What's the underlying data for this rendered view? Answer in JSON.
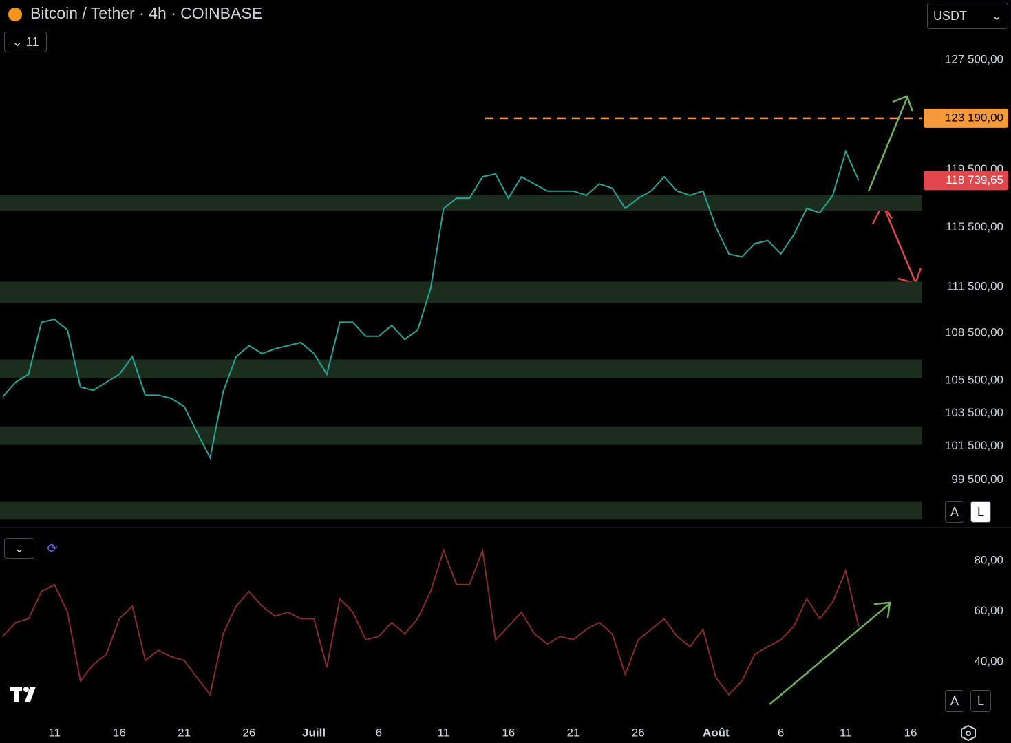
{
  "ui": {
    "indicator_count": "11",
    "currency": "USDT",
    "scale_buttons": [
      "A",
      "L"
    ]
  },
  "chart_data": [
    {
      "type": "line",
      "title": "Bitcoin / Tether · 4h · COINBASE",
      "log": true,
      "color": "#26a69a",
      "x": [
        -4,
        -3,
        -2,
        -1,
        0,
        1,
        2,
        3,
        4,
        5,
        6,
        7,
        8,
        9,
        10,
        11,
        12,
        13,
        14,
        15,
        16,
        17,
        18,
        19,
        20,
        21,
        22,
        23,
        24,
        25,
        26,
        27,
        28,
        29,
        30,
        31,
        32,
        33,
        34,
        35,
        36,
        37,
        38,
        39,
        40,
        41,
        42,
        43,
        44,
        45,
        46,
        47,
        48,
        49,
        50,
        51,
        52,
        53,
        54,
        55,
        56,
        57,
        58,
        59,
        60,
        61,
        62
      ],
      "values": [
        104500,
        105400,
        105900,
        109200,
        109400,
        108700,
        105100,
        104900,
        105400,
        105900,
        107000,
        104600,
        104600,
        104400,
        103900,
        102300,
        100800,
        104800,
        107000,
        107700,
        107200,
        107500,
        107700,
        107900,
        107200,
        105900,
        109200,
        109200,
        108300,
        108300,
        109000,
        108100,
        108700,
        111400,
        116800,
        117500,
        117500,
        119000,
        119200,
        117500,
        119000,
        118500,
        118000,
        118000,
        118000,
        117700,
        118500,
        118200,
        116800,
        117500,
        118000,
        119000,
        118000,
        117700,
        118000,
        115500,
        113700,
        113500,
        114400,
        114600,
        113700,
        115000,
        116800,
        116500,
        117700,
        120800,
        118739.65
      ],
      "xlim": [
        -4.2,
        66.9
      ],
      "ylim": [
        96800,
        132100
      ],
      "xticks": [
        {
          "value": 0,
          "label": "11"
        },
        {
          "value": 5,
          "label": "16"
        },
        {
          "value": 10,
          "label": "21"
        },
        {
          "value": 15,
          "label": "26"
        },
        {
          "value": 20,
          "label": "Juill"
        },
        {
          "value": 25,
          "label": "6"
        },
        {
          "value": 30,
          "label": "11"
        },
        {
          "value": 35,
          "label": "16"
        },
        {
          "value": 40,
          "label": "21"
        },
        {
          "value": 45,
          "label": "26"
        },
        {
          "value": 51,
          "label": "Août"
        },
        {
          "value": 56,
          "label": "6"
        },
        {
          "value": 61,
          "label": "11"
        },
        {
          "value": 66,
          "label": "16"
        }
      ],
      "yticks": [
        {
          "value": 127500,
          "label": "127 500,00"
        },
        {
          "value": 119500,
          "label": "119 500,00"
        },
        {
          "value": 115500,
          "label": "115 500,00"
        },
        {
          "value": 111500,
          "label": "111 500,00"
        },
        {
          "value": 108500,
          "label": "108 500,00"
        },
        {
          "value": 105500,
          "label": "105 500,00"
        },
        {
          "value": 103500,
          "label": "103 500,00"
        },
        {
          "value": 101500,
          "label": "101 500,00"
        },
        {
          "value": 99500,
          "label": "99 500,00"
        }
      ],
      "zones": [
        [
          116650,
          117730
        ],
        [
          110450,
          111850
        ],
        [
          105660,
          106830
        ],
        [
          101570,
          102690
        ],
        [
          97180,
          98240
        ]
      ],
      "level": {
        "value": 123190,
        "label": "123 190,00",
        "from_x": 33.2
      },
      "last_price": {
        "value": 118739.65,
        "label": "118 739,65"
      }
    },
    {
      "type": "line",
      "color": "#8b2a2a",
      "x": [
        -4,
        -3,
        -2,
        -1,
        0,
        1,
        2,
        3,
        4,
        5,
        6,
        7,
        8,
        9,
        10,
        11,
        12,
        13,
        14,
        15,
        16,
        17,
        18,
        19,
        20,
        21,
        22,
        23,
        24,
        25,
        26,
        27,
        28,
        29,
        30,
        31,
        32,
        33,
        34,
        35,
        36,
        37,
        38,
        39,
        40,
        41,
        42,
        43,
        44,
        45,
        46,
        47,
        48,
        49,
        50,
        51,
        52,
        53,
        54,
        55,
        56,
        57,
        58,
        59,
        60,
        61,
        62
      ],
      "values": [
        50,
        55.5,
        57,
        67.8,
        70.5,
        59.6,
        32.4,
        39,
        43,
        57,
        62,
        40.5,
        44.6,
        42,
        40.5,
        33.7,
        27,
        51,
        62,
        67.8,
        62,
        58,
        59.6,
        57,
        57,
        37.8,
        65,
        59.6,
        48.7,
        50,
        55.5,
        51,
        57,
        67.8,
        84,
        70.5,
        70.5,
        84,
        48.7,
        54,
        59.6,
        51,
        47,
        50,
        48.7,
        52.8,
        55.5,
        51,
        35,
        48.7,
        52.8,
        57,
        50,
        46,
        52.8,
        33.7,
        27,
        32.4,
        43,
        46,
        48.7,
        54,
        65,
        57,
        63.7,
        76,
        54
      ],
      "xlim": [
        -4.2,
        66.9
      ],
      "ylim": [
        17.4,
        92.2
      ],
      "yticks": [
        {
          "value": 80,
          "label": "80,00"
        },
        {
          "value": 60,
          "label": "60,00"
        },
        {
          "value": 40,
          "label": "40,00"
        }
      ]
    }
  ]
}
